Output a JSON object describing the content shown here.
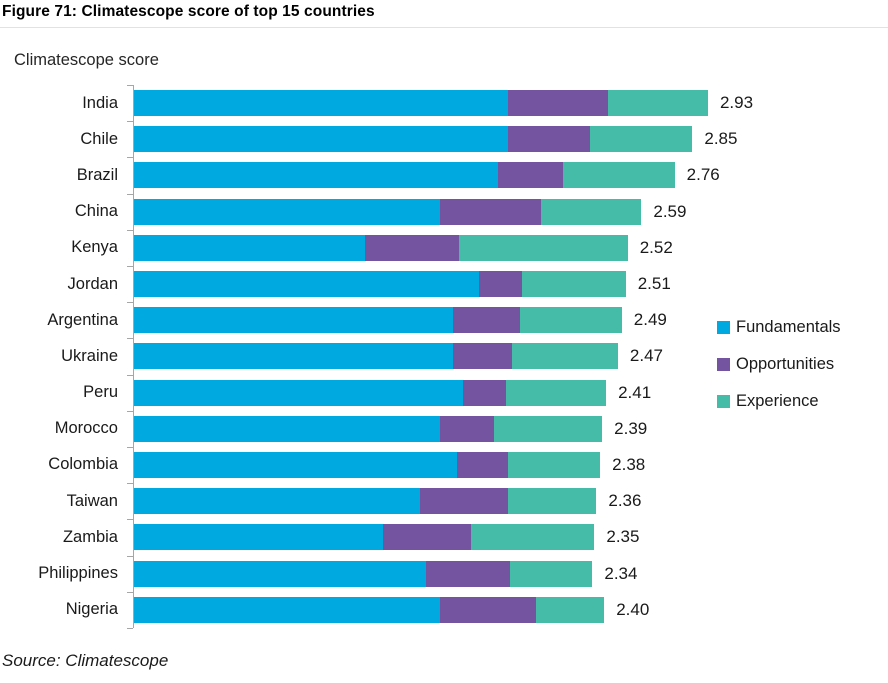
{
  "title": "Figure 71: Climatescope score of top 15 countries",
  "source": "Source: Climatescope",
  "colors": {
    "fundamentals": "#00A9E0",
    "opportunities": "#7454A1",
    "experience": "#45BCA8",
    "axis": "#A6A6A6",
    "text": "#1A1A1A"
  },
  "chart_data": {
    "type": "bar",
    "orientation": "horizontal",
    "stacked": true,
    "title": "Figure 71: Climatescope score of top 15 countries",
    "xlabel": "Climatescope score",
    "ylabel": "",
    "axis_label": "Climatescope score",
    "xlim": [
      0,
      3
    ],
    "grid": false,
    "legend_position": "right",
    "categories": [
      "India",
      "Chile",
      "Brazil",
      "China",
      "Kenya",
      "Jordan",
      "Argentina",
      "Ukraine",
      "Peru",
      "Morocco",
      "Colombia",
      "Taiwan",
      "Zambia",
      "Philippines",
      "Nigeria"
    ],
    "series": [
      {
        "name": "Fundamentals",
        "color": "#00A9E0",
        "values": [
          1.91,
          1.91,
          1.86,
          1.56,
          1.18,
          1.76,
          1.63,
          1.63,
          1.68,
          1.56,
          1.65,
          1.46,
          1.27,
          1.49,
          1.56
        ]
      },
      {
        "name": "Opportunities",
        "color": "#7454A1",
        "values": [
          0.51,
          0.42,
          0.33,
          0.52,
          0.48,
          0.22,
          0.34,
          0.3,
          0.22,
          0.28,
          0.26,
          0.45,
          0.45,
          0.43,
          0.49
        ]
      },
      {
        "name": "Experience",
        "color": "#45BCA8",
        "values": [
          0.51,
          0.52,
          0.57,
          0.51,
          0.86,
          0.53,
          0.52,
          0.54,
          0.51,
          0.55,
          0.47,
          0.45,
          0.63,
          0.42,
          0.35
        ]
      }
    ],
    "totals": [
      "2.93",
      "2.85",
      "2.76",
      "2.59",
      "2.52",
      "2.51",
      "2.49",
      "2.47",
      "2.41",
      "2.39",
      "2.38",
      "2.36",
      "2.35",
      "2.34",
      "2.40"
    ]
  }
}
